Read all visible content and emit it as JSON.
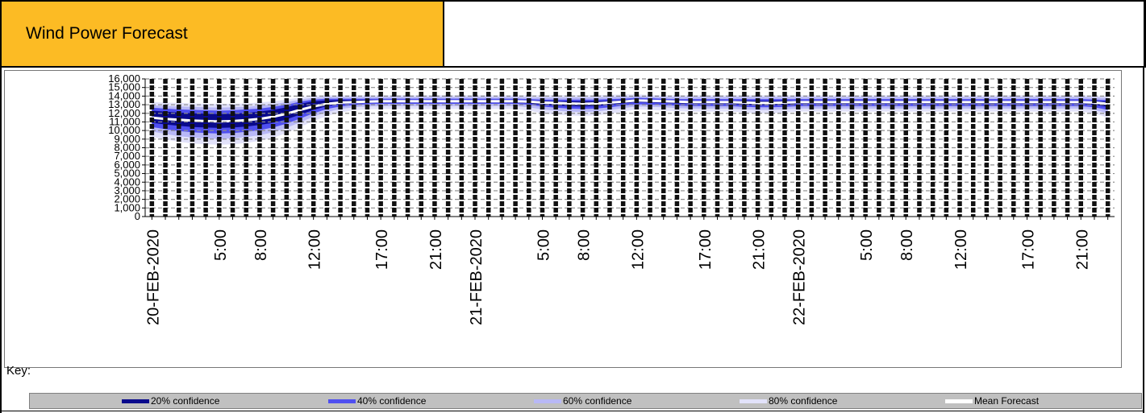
{
  "header": {
    "title": "Wind Power Forecast"
  },
  "key": {
    "label": "Key:",
    "items": [
      {
        "label": "20% confidence",
        "color": "#0a0a8c"
      },
      {
        "label": "40% confidence",
        "color": "#4f4ff0"
      },
      {
        "label": "60% confidence",
        "color": "#b8b8f6"
      },
      {
        "label": "80% confidence",
        "color": "#e2e2fa"
      },
      {
        "label": "Mean Forecast",
        "color": "#ffffff"
      }
    ]
  },
  "chart_data": {
    "type": "area",
    "title": "",
    "xlabel": "",
    "ylabel": "",
    "ylim": [
      0,
      16000
    ],
    "y_ticks": [
      "0",
      "1,000",
      "2,000",
      "3,000",
      "4,000",
      "5,000",
      "6,000",
      "7,000",
      "8,000",
      "9,000",
      "10,000",
      "11,000",
      "12,000",
      "13,000",
      "14,000",
      "15,000",
      "16,000"
    ],
    "x_tick_labels": [
      {
        "hour": 0,
        "label": "20-FEB-2020"
      },
      {
        "hour": 5,
        "label": "5:00"
      },
      {
        "hour": 8,
        "label": "8:00"
      },
      {
        "hour": 12,
        "label": "12:00"
      },
      {
        "hour": 17,
        "label": "17:00"
      },
      {
        "hour": 21,
        "label": "21:00"
      },
      {
        "hour": 24,
        "label": "21-FEB-2020"
      },
      {
        "hour": 29,
        "label": "5:00"
      },
      {
        "hour": 32,
        "label": "8:00"
      },
      {
        "hour": 36,
        "label": "12:00"
      },
      {
        "hour": 41,
        "label": "17:00"
      },
      {
        "hour": 45,
        "label": "21:00"
      },
      {
        "hour": 48,
        "label": "22-FEB-2020"
      },
      {
        "hour": 53,
        "label": "5:00"
      },
      {
        "hour": 56,
        "label": "8:00"
      },
      {
        "hour": 60,
        "label": "12:00"
      },
      {
        "hour": 65,
        "label": "17:00"
      },
      {
        "hour": 69,
        "label": "21:00"
      }
    ],
    "hours": [
      0,
      1,
      2,
      3,
      4,
      5,
      6,
      7,
      8,
      9,
      10,
      11,
      12,
      13,
      14,
      15,
      16,
      17,
      18,
      19,
      20,
      21,
      22,
      23,
      24,
      25,
      26,
      27,
      28,
      29,
      30,
      31,
      32,
      33,
      34,
      35,
      36,
      37,
      38,
      39,
      40,
      41,
      42,
      43,
      44,
      45,
      46,
      47,
      48,
      49,
      50,
      51,
      52,
      53,
      54,
      55,
      56,
      57,
      58,
      59,
      60,
      61,
      62,
      63,
      64,
      65,
      66,
      67,
      68,
      69,
      70,
      71
    ],
    "series": [
      {
        "name": "Mean Forecast",
        "values": [
          11500,
          11350,
          11250,
          11150,
          11100,
          11050,
          11100,
          11200,
          11350,
          11600,
          11950,
          12400,
          12800,
          13100,
          13250,
          13300,
          13350,
          13400,
          13400,
          13400,
          13400,
          13400,
          13400,
          13400,
          13400,
          13400,
          13400,
          13400,
          13350,
          13250,
          13200,
          13150,
          13100,
          13150,
          13250,
          13350,
          13500,
          13450,
          13400,
          13350,
          13300,
          13300,
          13300,
          13300,
          13250,
          13200,
          13200,
          13250,
          13300,
          13300,
          13300,
          13300,
          13300,
          13300,
          13300,
          13300,
          13300,
          13300,
          13300,
          13300,
          13300,
          13300,
          13300,
          13300,
          13300,
          13300,
          13300,
          13300,
          13300,
          13300,
          13250,
          13100
        ]
      },
      {
        "name": "20% confidence",
        "lower": [
          10900,
          10700,
          10550,
          10400,
          10350,
          10300,
          10350,
          10450,
          10650,
          10900,
          11300,
          11850,
          12400,
          12850,
          13050,
          13150,
          13200,
          13250,
          13250,
          13250,
          13250,
          13250,
          13250,
          13250,
          13250,
          13250,
          13250,
          13250,
          13150,
          13000,
          12900,
          12850,
          12800,
          12850,
          13000,
          13150,
          13300,
          13250,
          13200,
          13150,
          13100,
          13100,
          13100,
          13100,
          13000,
          12950,
          12950,
          13000,
          13100,
          13100,
          13100,
          13100,
          13100,
          13100,
          13100,
          13100,
          13100,
          13100,
          13100,
          13100,
          13100,
          13100,
          13100,
          13100,
          13100,
          13100,
          13100,
          13100,
          13100,
          13100,
          13000,
          12750
        ],
        "upper": [
          12300,
          12200,
          12100,
          12000,
          11950,
          11900,
          11950,
          12050,
          12200,
          12400,
          12700,
          13100,
          13400,
          13500,
          13550,
          13550,
          13550,
          13550,
          13550,
          13550,
          13550,
          13550,
          13550,
          13550,
          13550,
          13550,
          13550,
          13550,
          13500,
          13450,
          13400,
          13400,
          13400,
          13400,
          13450,
          13550,
          13650,
          13600,
          13550,
          13500,
          13450,
          13450,
          13450,
          13450,
          13450,
          13450,
          13450,
          13450,
          13450,
          13450,
          13450,
          13450,
          13450,
          13450,
          13450,
          13450,
          13450,
          13450,
          13450,
          13450,
          13450,
          13450,
          13450,
          13450,
          13450,
          13450,
          13450,
          13450,
          13450,
          13450,
          13400,
          13350
        ]
      },
      {
        "name": "40% confidence",
        "lower": [
          10400,
          10150,
          9950,
          9800,
          9700,
          9650,
          9700,
          9850,
          10050,
          10350,
          10800,
          11400,
          12000,
          12500,
          12800,
          12950,
          13050,
          13100,
          13100,
          13100,
          13100,
          13100,
          13100,
          13100,
          13100,
          13100,
          13100,
          13100,
          13000,
          12800,
          12650,
          12550,
          12500,
          12550,
          12700,
          12900,
          13050,
          13000,
          12950,
          12900,
          12850,
          12850,
          12850,
          12850,
          12750,
          12700,
          12700,
          12750,
          12850,
          12850,
          12850,
          12850,
          12850,
          12850,
          12850,
          12850,
          12850,
          12850,
          12850,
          12850,
          12850,
          12850,
          12850,
          12850,
          12850,
          12850,
          12850,
          12850,
          12850,
          12850,
          12700,
          12400
        ],
        "upper": [
          12650,
          12550,
          12450,
          12400,
          12350,
          12300,
          12350,
          12450,
          12550,
          12750,
          13000,
          13350,
          13600,
          13700,
          13700,
          13700,
          13700,
          13700,
          13700,
          13700,
          13700,
          13700,
          13700,
          13700,
          13700,
          13700,
          13700,
          13700,
          13650,
          13600,
          13600,
          13600,
          13600,
          13600,
          13650,
          13700,
          13800,
          13750,
          13700,
          13650,
          13650,
          13650,
          13650,
          13650,
          13650,
          13650,
          13650,
          13650,
          13650,
          13650,
          13650,
          13650,
          13650,
          13650,
          13650,
          13650,
          13650,
          13650,
          13650,
          13650,
          13650,
          13650,
          13650,
          13650,
          13650,
          13650,
          13650,
          13650,
          13650,
          13650,
          13600,
          13550
        ]
      },
      {
        "name": "60% confidence",
        "lower": [
          9900,
          9600,
          9350,
          9200,
          9100,
          9000,
          9100,
          9250,
          9450,
          9800,
          10300,
          10950,
          11600,
          12150,
          12500,
          12700,
          12800,
          12850,
          12850,
          12850,
          12850,
          12850,
          12850,
          12850,
          12850,
          12850,
          12850,
          12850,
          12700,
          12450,
          12300,
          12200,
          12150,
          12200,
          12400,
          12600,
          12800,
          12750,
          12700,
          12600,
          12550,
          12550,
          12550,
          12550,
          12450,
          12400,
          12400,
          12450,
          12550,
          12550,
          12550,
          12550,
          12550,
          12550,
          12550,
          12550,
          12550,
          12550,
          12550,
          12550,
          12550,
          12550,
          12550,
          12550,
          12550,
          12550,
          12550,
          12550,
          12550,
          12550,
          12400,
          12000
        ],
        "upper": [
          12950,
          12850,
          12800,
          12750,
          12700,
          12650,
          12700,
          12750,
          12900,
          13050,
          13300,
          13600,
          13800,
          13900,
          13900,
          13900,
          13900,
          13900,
          13900,
          13900,
          13900,
          13900,
          13900,
          13900,
          13900,
          13900,
          13900,
          13900,
          13850,
          13850,
          13850,
          13850,
          13850,
          13850,
          13900,
          13950,
          14000,
          13950,
          13900,
          13900,
          13900,
          13900,
          13900,
          13900,
          13900,
          13900,
          13900,
          13900,
          13900,
          13900,
          13900,
          13900,
          13900,
          13900,
          13900,
          13900,
          13900,
          13900,
          13900,
          13900,
          13900,
          13900,
          13900,
          13900,
          13900,
          13900,
          13900,
          13900,
          13900,
          13900,
          13850,
          13800
        ]
      },
      {
        "name": "80% confidence",
        "lower": [
          9300,
          8950,
          8700,
          8500,
          8400,
          8350,
          8400,
          8550,
          8800,
          9150,
          9700,
          10400,
          11100,
          11700,
          12100,
          12350,
          12450,
          12500,
          12500,
          12500,
          12500,
          12500,
          12500,
          12500,
          12500,
          12500,
          12500,
          12500,
          12300,
          12000,
          11850,
          11750,
          11700,
          11750,
          11950,
          12200,
          12450,
          12400,
          12300,
          12250,
          12200,
          12200,
          12200,
          12200,
          12100,
          12000,
          12000,
          12100,
          12200,
          12200,
          12200,
          12200,
          12200,
          12200,
          12200,
          12200,
          12200,
          12200,
          12200,
          12200,
          12200,
          12200,
          12200,
          12200,
          12200,
          12200,
          12200,
          12200,
          12200,
          12200,
          12000,
          11500
        ],
        "upper": [
          13300,
          13250,
          13200,
          13150,
          13100,
          13100,
          13100,
          13150,
          13250,
          13400,
          13600,
          13850,
          14050,
          14100,
          14100,
          14100,
          14100,
          14100,
          14100,
          14100,
          14100,
          14100,
          14100,
          14100,
          14100,
          14100,
          14100,
          14100,
          14100,
          14100,
          14100,
          14100,
          14100,
          14100,
          14150,
          14200,
          14200,
          14150,
          14100,
          14100,
          14100,
          14100,
          14100,
          14100,
          14100,
          14100,
          14100,
          14100,
          14100,
          14100,
          14100,
          14100,
          14100,
          14100,
          14100,
          14100,
          14100,
          14100,
          14100,
          14100,
          14100,
          14100,
          14100,
          14100,
          14100,
          14100,
          14100,
          14100,
          14100,
          14100,
          14050,
          14000
        ]
      }
    ],
    "grid": true,
    "legend_position": "bottom"
  }
}
